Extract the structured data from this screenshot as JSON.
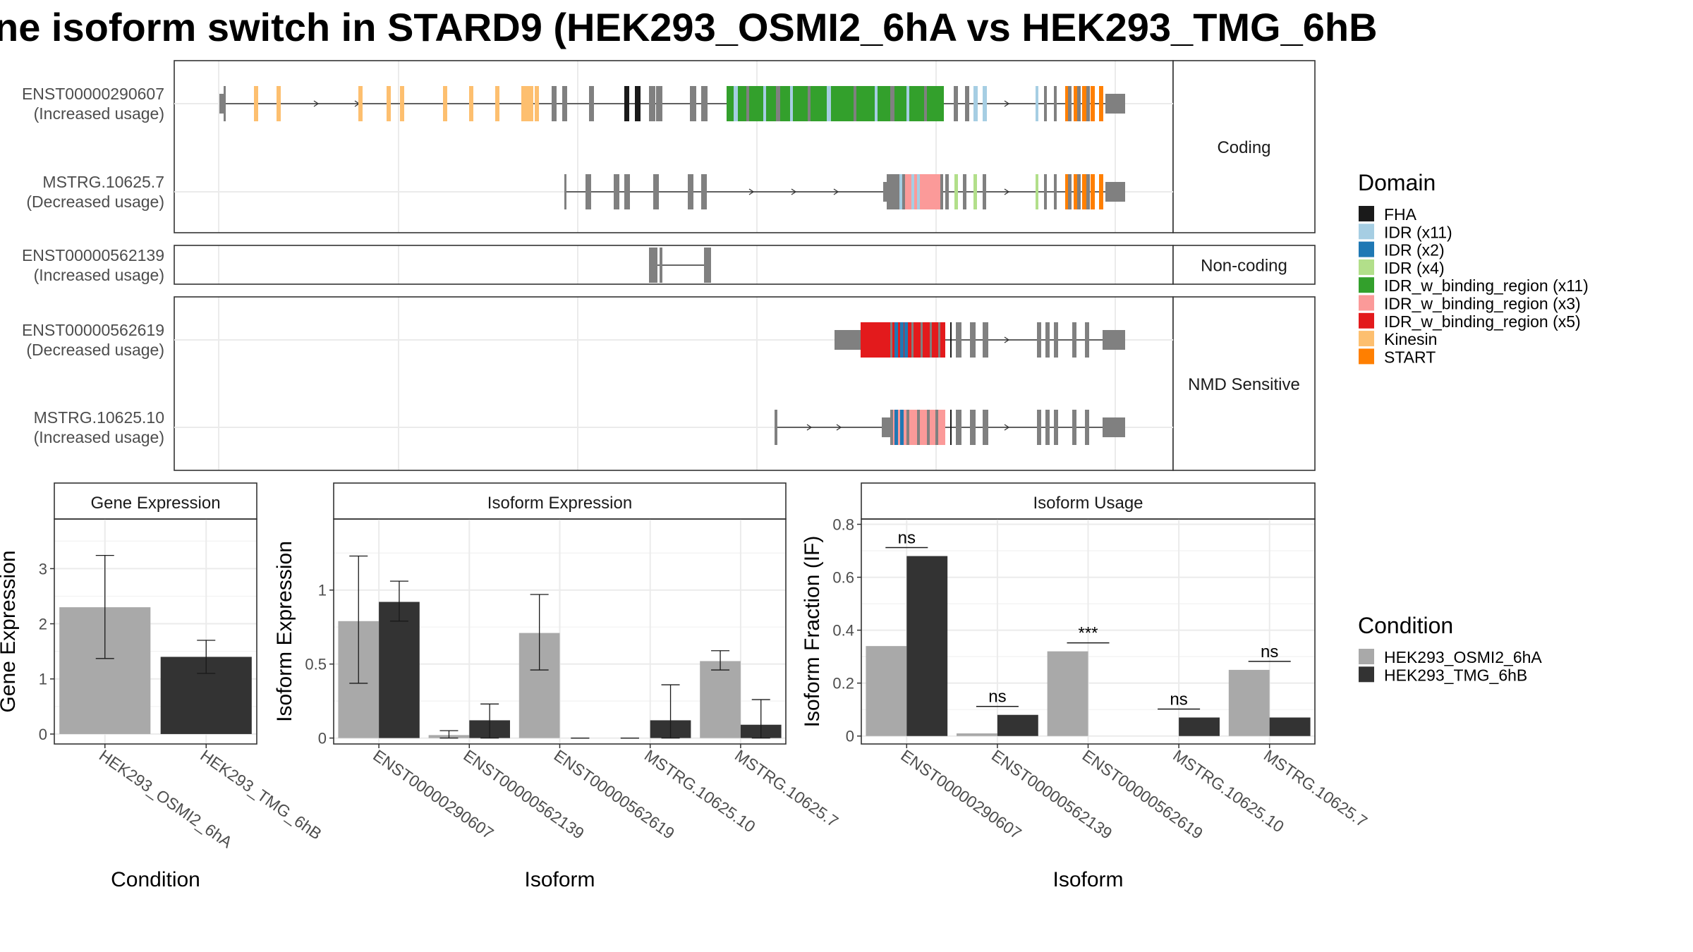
{
  "title": "ne isoform switch in STARD9 (HEK293_OSMI2_6hA vs HEK293_TMG_6hB",
  "colors": {
    "FHA": "#1a1a1a",
    "IDR (x11)": "#a6cee3",
    "IDR (x2)": "#1f78b4",
    "IDR (x4)": "#b2df8a",
    "IDR_w_binding_region (x11)": "#33a02c",
    "IDR_w_binding_region (x3)": "#fb9a99",
    "IDR_w_binding_region (x5)": "#e31a1c",
    "Kinesin": "#fdbf6f",
    "START": "#ff7f00",
    "exon": "#808080",
    "cond_a": "#a9a9a9",
    "cond_b": "#333333"
  },
  "structure": {
    "facets": [
      "Coding",
      "Non-coding",
      "NMD Sensitive"
    ],
    "isoforms": [
      {
        "id": "ENST00000290607",
        "usage": "(Increased usage)",
        "facet": "Coding"
      },
      {
        "id": "MSTRG.10625.7",
        "usage": "(Decreased usage)",
        "facet": "Coding"
      },
      {
        "id": "ENST00000562139",
        "usage": "(Increased usage)",
        "facet": "Non-coding"
      },
      {
        "id": "ENST00000562619",
        "usage": "(Decreased usage)",
        "facet": "NMD Sensitive"
      },
      {
        "id": "MSTRG.10625.10",
        "usage": "(Increased usage)",
        "facet": "NMD Sensitive"
      }
    ]
  },
  "domain_legend": {
    "title": "Domain",
    "items": [
      "FHA",
      "IDR (x11)",
      "IDR (x2)",
      "IDR (x4)",
      "IDR_w_binding_region (x11)",
      "IDR_w_binding_region (x3)",
      "IDR_w_binding_region (x5)",
      "Kinesin",
      "START"
    ]
  },
  "condition_legend": {
    "title": "Condition",
    "items": [
      "HEK293_OSMI2_6hA",
      "HEK293_TMG_6hB"
    ]
  },
  "chart_data": [
    {
      "type": "bar",
      "title": "Gene Expression",
      "xlabel": "Condition",
      "ylabel": "Gene Expression",
      "categories": [
        "HEK293_OSMI2_6hA",
        "HEK293_TMG_6hB"
      ],
      "values": [
        2.3,
        1.4
      ],
      "error_low": [
        1.37,
        1.1
      ],
      "error_high": [
        3.24,
        1.7
      ],
      "ylim": [
        -0.18,
        3.9
      ],
      "yticks": [
        0,
        1,
        2,
        3
      ]
    },
    {
      "type": "bar",
      "title": "Isoform Expression",
      "xlabel": "Isoform",
      "ylabel": "Isoform Expression",
      "categories": [
        "ENST00000290607",
        "ENST00000562139",
        "ENST00000562619",
        "MSTRG.10625.10",
        "MSTRG.10625.7"
      ],
      "series": [
        {
          "name": "HEK293_OSMI2_6hA",
          "values": [
            0.79,
            0.02,
            0.71,
            0.0,
            0.52
          ],
          "error_low": [
            0.37,
            0.0,
            0.46,
            0.0,
            0.46
          ],
          "error_high": [
            1.23,
            0.05,
            0.97,
            0.0,
            0.59
          ]
        },
        {
          "name": "HEK293_TMG_6hB",
          "values": [
            0.92,
            0.12,
            0.0,
            0.12,
            0.09
          ],
          "error_low": [
            0.79,
            0.0,
            0.0,
            0.0,
            0.0
          ],
          "error_high": [
            1.06,
            0.23,
            0.0,
            0.36,
            0.26
          ]
        }
      ],
      "ylim": [
        -0.04,
        1.48
      ],
      "yticks": [
        0.0,
        0.5,
        1.0
      ]
    },
    {
      "type": "bar",
      "title": "Isoform Usage",
      "xlabel": "Isoform",
      "ylabel": "Isoform Fraction (IF)",
      "categories": [
        "ENST00000290607",
        "ENST00000562139",
        "ENST00000562619",
        "MSTRG.10625.10",
        "MSTRG.10625.7"
      ],
      "series": [
        {
          "name": "HEK293_OSMI2_6hA",
          "values": [
            0.34,
            0.01,
            0.32,
            0.0,
            0.25
          ]
        },
        {
          "name": "HEK293_TMG_6hB",
          "values": [
            0.68,
            0.08,
            0.0,
            0.07,
            0.07
          ]
        }
      ],
      "significance": [
        "ns",
        "ns",
        "***",
        "ns",
        "ns"
      ],
      "ylim": [
        -0.03,
        0.82
      ],
      "yticks": [
        0.0,
        0.2,
        0.4,
        0.6,
        0.8
      ]
    }
  ]
}
